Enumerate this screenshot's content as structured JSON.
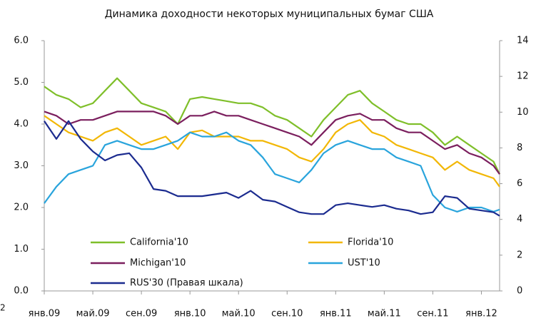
{
  "chart_data": {
    "type": "line",
    "title": "Динамика доходности некоторых муниципальных бумаг США",
    "footnote": "2",
    "x": [
      0,
      1,
      2,
      3,
      4,
      5,
      6,
      7,
      8,
      9,
      10,
      11,
      12,
      13,
      14,
      15,
      16,
      17,
      18,
      19,
      20,
      21,
      22,
      23,
      24,
      25,
      26,
      27,
      28,
      29,
      30,
      31,
      32,
      33,
      34,
      35,
      36,
      37,
      37.5
    ],
    "xlim": [
      0,
      37.5
    ],
    "xticks": [
      {
        "value": 0,
        "label": "янв.09"
      },
      {
        "value": 4,
        "label": "май.09"
      },
      {
        "value": 8,
        "label": "сен.09"
      },
      {
        "value": 12,
        "label": "янв.10"
      },
      {
        "value": 16,
        "label": "май.10"
      },
      {
        "value": 20,
        "label": "сен.10"
      },
      {
        "value": 24,
        "label": "янв.11"
      },
      {
        "value": 28,
        "label": "май.11"
      },
      {
        "value": 32,
        "label": "сен.11"
      },
      {
        "value": 36,
        "label": "янв.12"
      }
    ],
    "ylim": [
      0,
      6
    ],
    "yticks": [
      {
        "value": 0,
        "label": "0.0"
      },
      {
        "value": 1,
        "label": "1.0"
      },
      {
        "value": 2,
        "label": "2.0"
      },
      {
        "value": 3,
        "label": "3.0"
      },
      {
        "value": 4,
        "label": "4.0"
      },
      {
        "value": 5,
        "label": "5.0"
      },
      {
        "value": 6,
        "label": "6.0"
      }
    ],
    "y2lim": [
      0,
      14
    ],
    "y2ticks": [
      0,
      2,
      4,
      6,
      8,
      10,
      12,
      14
    ],
    "series": [
      {
        "name": "California'10",
        "color": "#7fbf2a",
        "values": [
          4.9,
          4.7,
          4.6,
          4.4,
          4.5,
          4.8,
          5.1,
          4.8,
          4.5,
          4.4,
          4.3,
          4.0,
          4.6,
          4.65,
          4.6,
          4.55,
          4.5,
          4.5,
          4.4,
          4.2,
          4.1,
          3.9,
          3.7,
          4.1,
          4.4,
          4.7,
          4.8,
          4.5,
          4.3,
          4.1,
          4.0,
          4.0,
          3.8,
          3.5,
          3.7,
          3.5,
          3.3,
          3.1,
          2.8
        ]
      },
      {
        "name": "Florida'10",
        "color": "#f2b705",
        "values": [
          4.2,
          4.0,
          3.8,
          3.7,
          3.6,
          3.8,
          3.9,
          3.7,
          3.5,
          3.6,
          3.7,
          3.4,
          3.8,
          3.85,
          3.7,
          3.7,
          3.7,
          3.6,
          3.6,
          3.5,
          3.4,
          3.2,
          3.1,
          3.4,
          3.8,
          4.0,
          4.1,
          3.8,
          3.7,
          3.5,
          3.4,
          3.3,
          3.2,
          2.9,
          3.1,
          2.9,
          2.8,
          2.7,
          2.5
        ]
      },
      {
        "name": "Michigan'10",
        "color": "#7b1f5e",
        "values": [
          4.3,
          4.2,
          4.0,
          4.1,
          4.1,
          4.2,
          4.3,
          4.3,
          4.3,
          4.3,
          4.2,
          4.0,
          4.2,
          4.2,
          4.3,
          4.2,
          4.2,
          4.1,
          4.0,
          3.9,
          3.8,
          3.7,
          3.5,
          3.8,
          4.1,
          4.2,
          4.25,
          4.1,
          4.1,
          3.9,
          3.8,
          3.8,
          3.6,
          3.4,
          3.5,
          3.3,
          3.2,
          3.0,
          2.8
        ]
      },
      {
        "name": "UST'10",
        "color": "#29a4dc",
        "values": [
          2.1,
          2.5,
          2.8,
          2.9,
          3.0,
          3.5,
          3.6,
          3.5,
          3.4,
          3.4,
          3.5,
          3.6,
          3.8,
          3.7,
          3.7,
          3.8,
          3.6,
          3.5,
          3.2,
          2.8,
          2.7,
          2.6,
          2.9,
          3.3,
          3.5,
          3.6,
          3.5,
          3.4,
          3.4,
          3.2,
          3.1,
          3.0,
          2.3,
          2.0,
          1.9,
          2.0,
          2.0,
          1.9,
          1.95
        ]
      },
      {
        "name": "RUS'30 (Правая шкала)",
        "color": "#1b2b8f",
        "axis": "y2",
        "values": [
          9.5,
          8.5,
          9.5,
          8.5,
          7.8,
          7.3,
          7.6,
          7.7,
          6.9,
          5.7,
          5.6,
          5.3,
          5.3,
          5.3,
          5.4,
          5.5,
          5.2,
          5.6,
          5.1,
          5.0,
          4.7,
          4.4,
          4.3,
          4.3,
          4.8,
          4.9,
          4.8,
          4.7,
          4.8,
          4.6,
          4.5,
          4.3,
          4.4,
          5.3,
          5.2,
          4.6,
          4.5,
          4.4,
          4.2
        ]
      }
    ]
  }
}
